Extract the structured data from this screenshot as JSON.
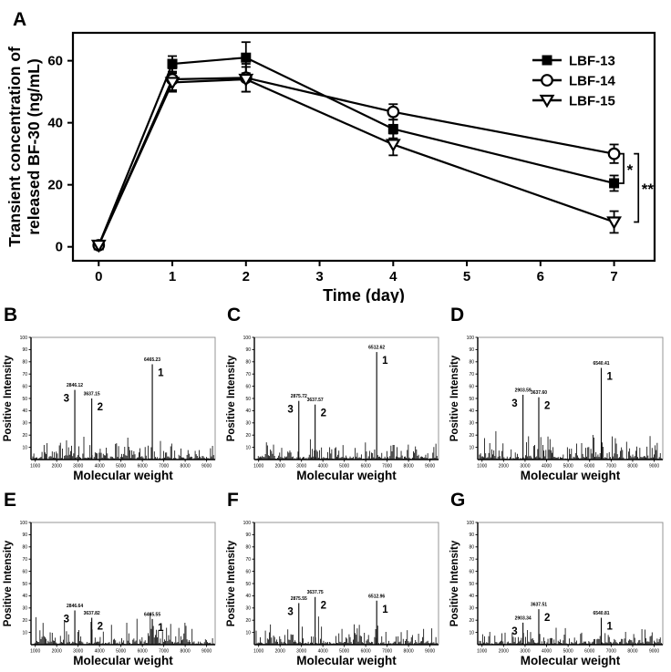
{
  "figure": {
    "background": "#ffffff",
    "ink": "#000000",
    "frame_gray": "#8a8a8a"
  },
  "chart_data": [
    {
      "panel": "A",
      "type": "line",
      "xlabel": "Time (day)",
      "ylabel_lines": [
        "Transient concentration of",
        "released BF-30 (ng/mL)"
      ],
      "x": [
        0,
        1,
        2,
        4,
        7
      ],
      "xticks": [
        0,
        1,
        2,
        3,
        4,
        5,
        6,
        7
      ],
      "yticks": [
        0,
        20,
        40,
        60
      ],
      "xlim": [
        -0.35,
        7.55
      ],
      "ylim": [
        -4.5,
        69
      ],
      "grid": false,
      "legend_position": "top-right",
      "series": [
        {
          "name": "LBF-13",
          "marker": "filled-square",
          "values": [
            0.5,
            59,
            61,
            38,
            20.5
          ],
          "errors": [
            1,
            2.5,
            5,
            3,
            2.5
          ]
        },
        {
          "name": "LBF-14",
          "marker": "open-circle",
          "values": [
            0.5,
            54,
            54.5,
            43.5,
            30
          ],
          "errors": [
            1,
            3.5,
            4.5,
            2.5,
            3
          ]
        },
        {
          "name": "LBF-15",
          "marker": "open-triangle-down",
          "values": [
            0.5,
            53,
            54,
            33,
            8
          ],
          "errors": [
            1,
            3,
            4,
            3.5,
            3.5
          ]
        }
      ],
      "sig_brackets": [
        {
          "label": "*",
          "between": [
            "LBF-14",
            "LBF-13"
          ],
          "x_day": 7.13,
          "y_top": 30,
          "y_bottom": 20.5
        },
        {
          "label": "**",
          "between": [
            "LBF-14",
            "LBF-15"
          ],
          "x_day": 7.33,
          "y_top": 30,
          "y_bottom": 8
        }
      ]
    },
    {
      "panel": "B",
      "type": "bar",
      "xlabel": "Molecular weight",
      "ylabel": "Positive Intensity",
      "xlim": [
        800,
        9400
      ],
      "ylim": [
        0,
        100
      ],
      "xticks": [
        1000,
        2000,
        3000,
        4000,
        5000,
        6000,
        7000,
        8000,
        9000
      ],
      "yticks": [
        10,
        20,
        30,
        40,
        50,
        60,
        70,
        80,
        90,
        100
      ],
      "peaks": [
        {
          "num": "3",
          "mz": "2846.12",
          "intensity": 57,
          "num_side": "left"
        },
        {
          "num": "2",
          "mz": "3637.15",
          "intensity": 50,
          "num_side": "right"
        },
        {
          "num": "1",
          "mz": "6465.23",
          "intensity": 78,
          "num_side": "right"
        }
      ],
      "noise_seed": 11,
      "noise_max": 16
    },
    {
      "panel": "C",
      "type": "bar",
      "xlabel": "Molecular weight",
      "ylabel": "Positive Intensity",
      "xlim": [
        800,
        9400
      ],
      "ylim": [
        0,
        100
      ],
      "xticks": [
        1000,
        2000,
        3000,
        4000,
        5000,
        6000,
        7000,
        8000,
        9000
      ],
      "yticks": [
        10,
        20,
        30,
        40,
        50,
        60,
        70,
        80,
        90,
        100
      ],
      "peaks": [
        {
          "num": "3",
          "mz": "2875.72",
          "intensity": 48,
          "num_side": "left"
        },
        {
          "num": "2",
          "mz": "3637.57",
          "intensity": 45,
          "num_side": "right"
        },
        {
          "num": "1",
          "mz": "6512.62",
          "intensity": 88,
          "num_side": "right"
        }
      ],
      "noise_seed": 23,
      "noise_max": 13
    },
    {
      "panel": "D",
      "type": "bar",
      "xlabel": "Molecular weight",
      "ylabel": "Positive Intensity",
      "xlim": [
        800,
        9400
      ],
      "ylim": [
        0,
        100
      ],
      "xticks": [
        1000,
        2000,
        3000,
        4000,
        5000,
        6000,
        7000,
        8000,
        9000
      ],
      "yticks": [
        10,
        20,
        30,
        40,
        50,
        60,
        70,
        80,
        90,
        100
      ],
      "peaks": [
        {
          "num": "3",
          "mz": "2903.59",
          "intensity": 53,
          "num_side": "left"
        },
        {
          "num": "2",
          "mz": "3637.60",
          "intensity": 51,
          "num_side": "right"
        },
        {
          "num": "1",
          "mz": "6540.41",
          "intensity": 75,
          "num_side": "right"
        }
      ],
      "noise_seed": 37,
      "noise_max": 17
    },
    {
      "panel": "E",
      "type": "bar",
      "xlabel": "Molecular weight",
      "ylabel": "Positive Intensity",
      "xlim": [
        800,
        9400
      ],
      "ylim": [
        0,
        100
      ],
      "xticks": [
        1000,
        2000,
        3000,
        4000,
        5000,
        6000,
        7000,
        8000,
        9000
      ],
      "yticks": [
        10,
        20,
        30,
        40,
        50,
        60,
        70,
        80,
        90,
        100
      ],
      "peaks": [
        {
          "num": "3",
          "mz": "2846.64",
          "intensity": 28,
          "num_side": "left"
        },
        {
          "num": "2",
          "mz": "3637.82",
          "intensity": 22,
          "num_side": "right"
        },
        {
          "num": "1",
          "mz": "6465.55",
          "intensity": 21,
          "num_side": "right"
        }
      ],
      "noise_seed": 51,
      "noise_max": 17
    },
    {
      "panel": "F",
      "type": "bar",
      "xlabel": "Molecular weight",
      "ylabel": "Positive Intensity",
      "xlim": [
        800,
        9400
      ],
      "ylim": [
        0,
        100
      ],
      "xticks": [
        1000,
        2000,
        3000,
        4000,
        5000,
        6000,
        7000,
        8000,
        9000
      ],
      "yticks": [
        10,
        20,
        30,
        40,
        50,
        60,
        70,
        80,
        90,
        100
      ],
      "peaks": [
        {
          "num": "3",
          "mz": "2875.55",
          "intensity": 34,
          "num_side": "left"
        },
        {
          "num": "2",
          "mz": "3637.75",
          "intensity": 39,
          "num_side": "right"
        },
        {
          "num": "1",
          "mz": "6512.96",
          "intensity": 36,
          "num_side": "right"
        }
      ],
      "noise_seed": 67,
      "noise_max": 13
    },
    {
      "panel": "G",
      "type": "bar",
      "xlabel": "Molecular weight",
      "ylabel": "Positive Intensity",
      "xlim": [
        800,
        9400
      ],
      "ylim": [
        0,
        100
      ],
      "xticks": [
        1000,
        2000,
        3000,
        4000,
        5000,
        6000,
        7000,
        8000,
        9000
      ],
      "yticks": [
        10,
        20,
        30,
        40,
        50,
        60,
        70,
        80,
        90,
        100
      ],
      "peaks": [
        {
          "num": "3",
          "mz": "2903.34",
          "intensity": 18,
          "num_side": "left"
        },
        {
          "num": "2",
          "mz": "3637.51",
          "intensity": 29,
          "num_side": "right"
        },
        {
          "num": "1",
          "mz": "6540.81",
          "intensity": 22,
          "num_side": "right"
        }
      ],
      "noise_seed": 83,
      "noise_max": 11
    }
  ]
}
